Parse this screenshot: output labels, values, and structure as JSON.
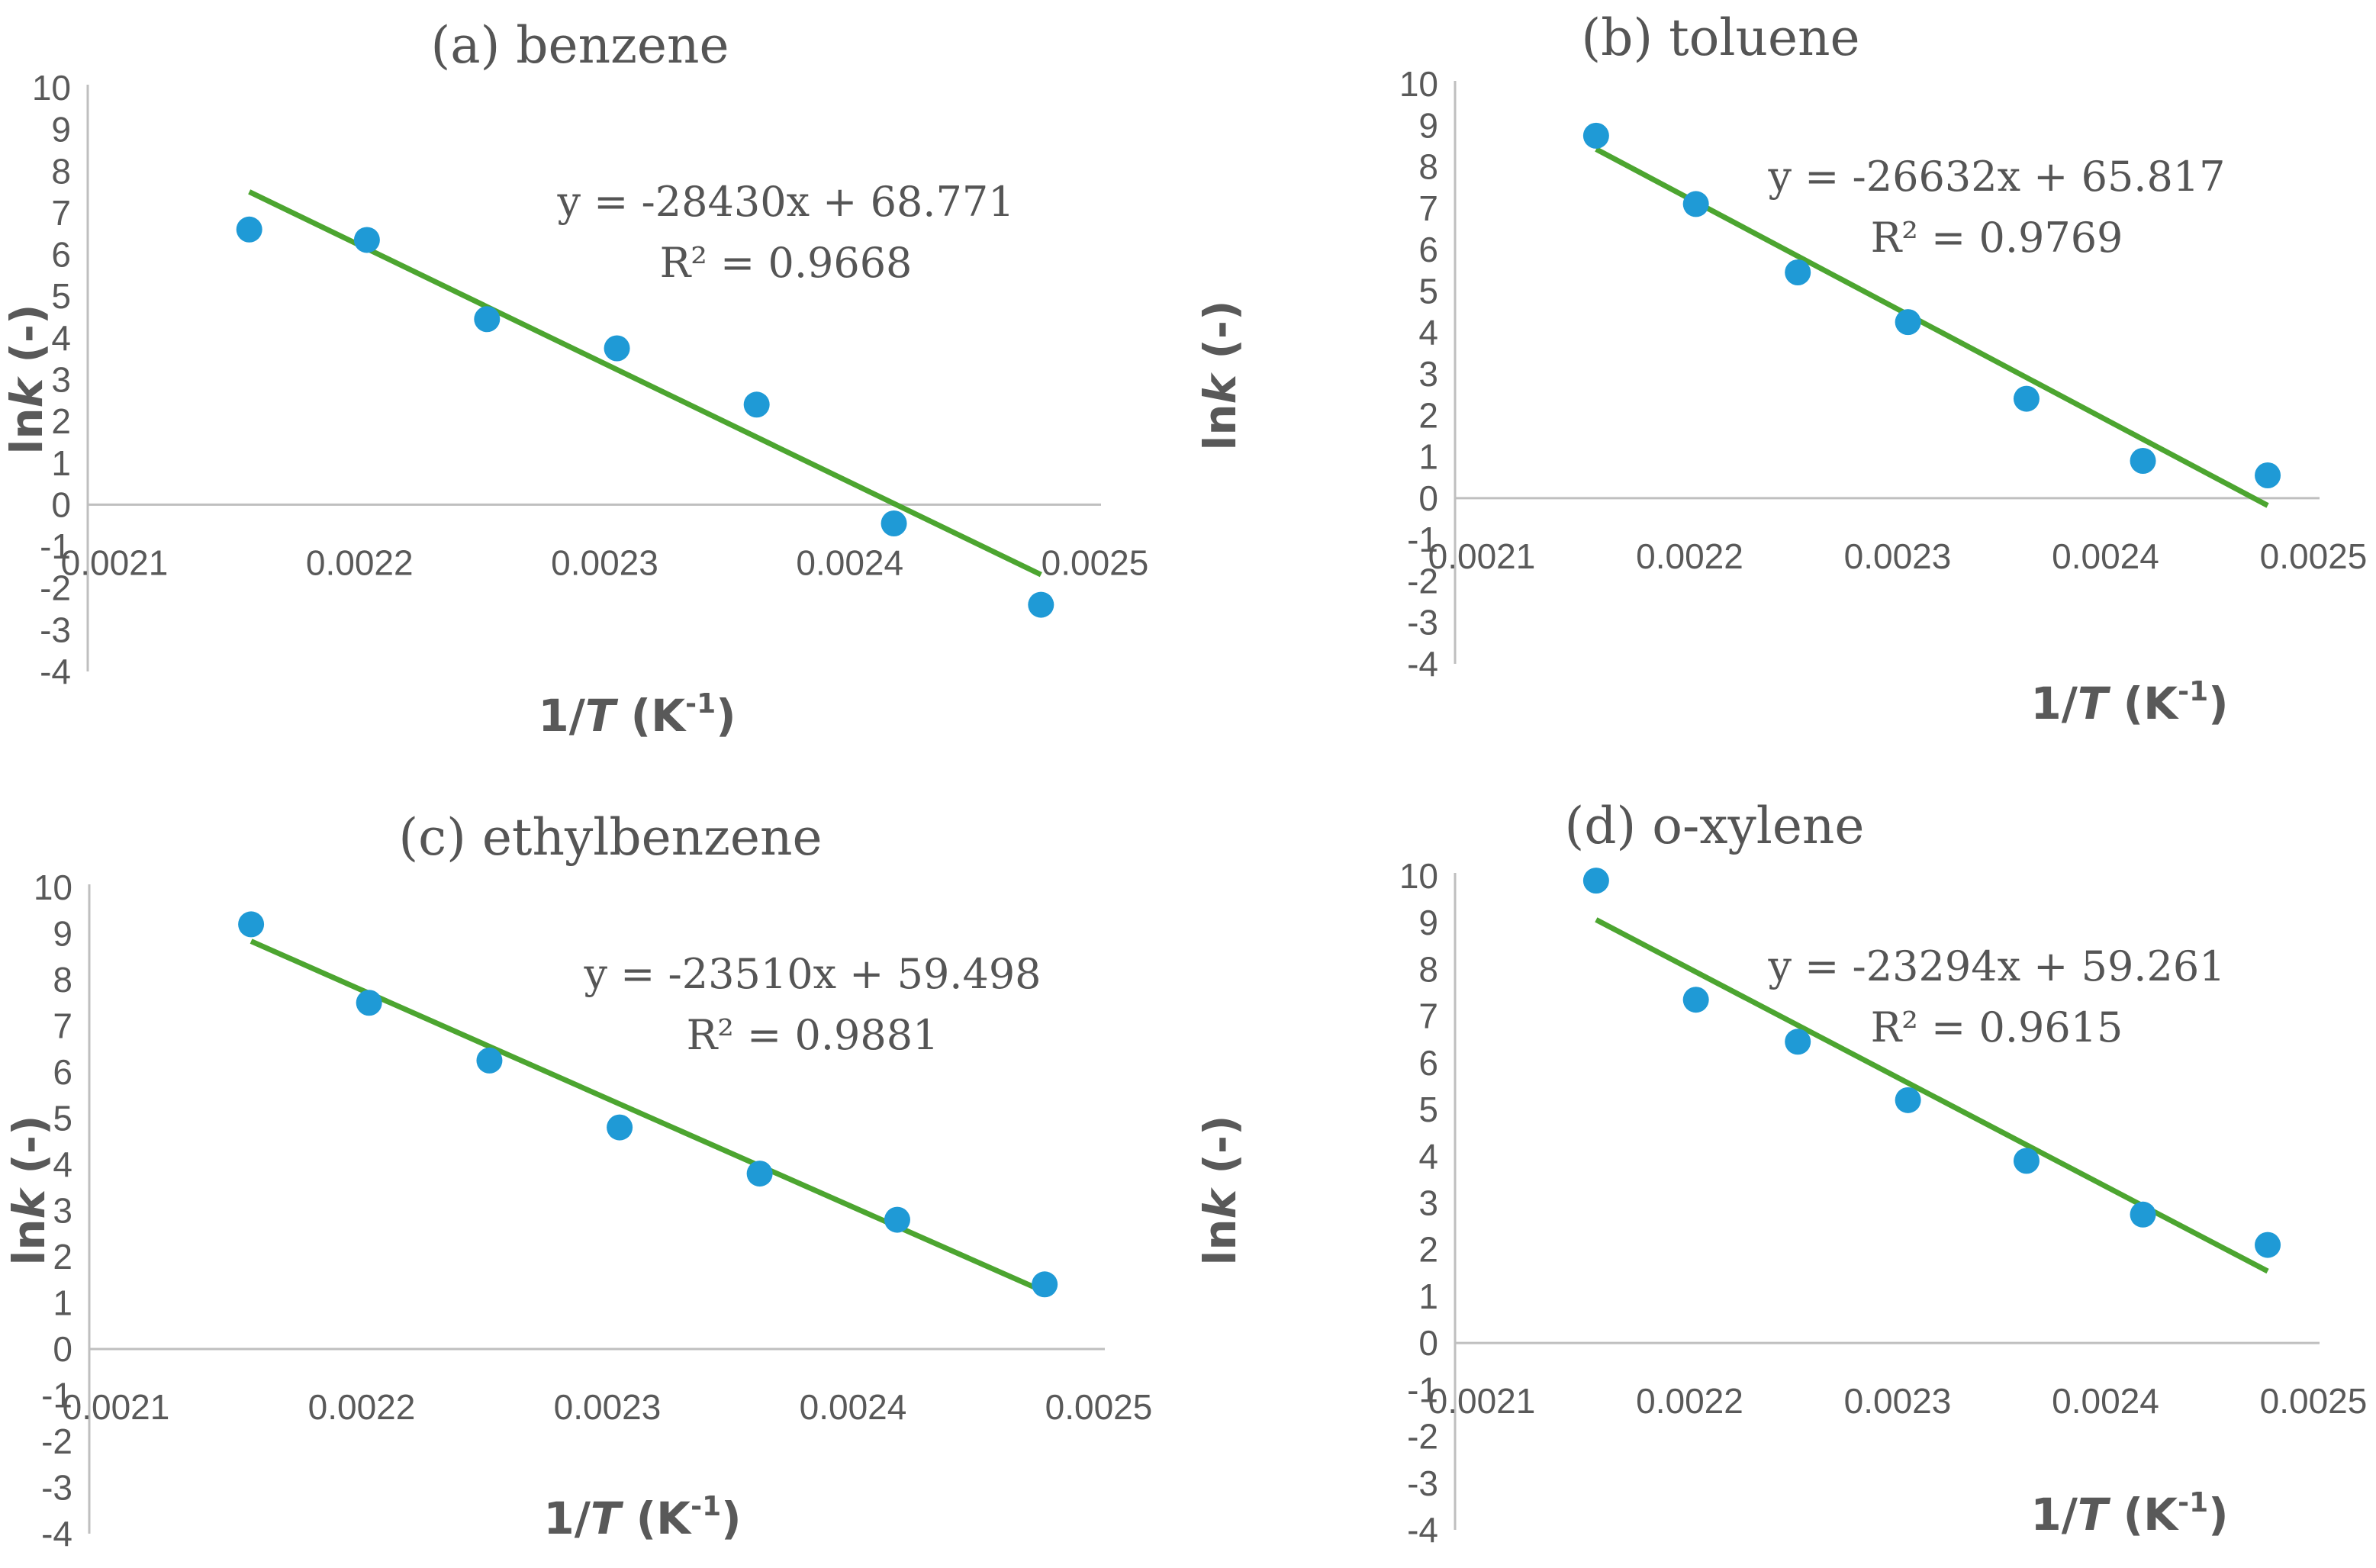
{
  "chart_data": [
    {
      "type": "scatter",
      "title": "(a) benzene",
      "xlabel_main": "1/",
      "xlabel_italic": "T",
      "xlabel_unit": " (K",
      "xlabel_sup": "-1",
      "xlabel_close": ")",
      "ylabel_main": "ln",
      "ylabel_italic": "k",
      "ylabel_unit": " (-)",
      "xlim": [
        0.0021,
        0.0025
      ],
      "ylim": [
        -4,
        10
      ],
      "x_ticks": [
        "0.0021",
        "0.0022",
        "0.0023",
        "0.0024",
        "0.0025"
      ],
      "x_tick_values": [
        0.0021,
        0.0022,
        0.0023,
        0.0024,
        0.0025
      ],
      "y_ticks": [
        -4,
        -3,
        -2,
        -1,
        0,
        1,
        2,
        3,
        4,
        5,
        6,
        7,
        8,
        9,
        10
      ],
      "x": [
        0.002155,
        0.002203,
        0.002252,
        0.002305,
        0.002362,
        0.002418,
        0.002478
      ],
      "y": [
        6.6,
        6.35,
        4.45,
        3.75,
        2.4,
        -0.45,
        -2.4
      ],
      "trendline": {
        "slope": -28430,
        "intercept": 68.771
      },
      "equation": "y = -28430x + 68.771",
      "r_squared": "R² = 0.9668",
      "point_color": "#1f9ad6",
      "line_color": "#4ca530"
    },
    {
      "type": "scatter",
      "title": "(b) toluene",
      "xlabel_main": "1/",
      "xlabel_italic": "T",
      "xlabel_unit": " (K",
      "xlabel_sup": "-1",
      "xlabel_close": ")",
      "ylabel_main": "ln",
      "ylabel_italic": "k",
      "ylabel_unit": " (-)",
      "xlim": [
        0.0021,
        0.0025
      ],
      "ylim": [
        -4,
        10
      ],
      "x_ticks": [
        "0.0021",
        "0.0022",
        "0.0023",
        "0.0024",
        "0.0025"
      ],
      "x_tick_values": [
        0.0021,
        0.0022,
        0.0023,
        0.0024,
        0.0025
      ],
      "y_ticks": [
        -4,
        -3,
        -2,
        -1,
        0,
        1,
        2,
        3,
        4,
        5,
        6,
        7,
        8,
        9,
        10
      ],
      "x": [
        0.002155,
        0.002203,
        0.002252,
        0.002305,
        0.002362,
        0.002418,
        0.002478
      ],
      "y": [
        8.75,
        7.1,
        5.45,
        4.25,
        2.4,
        0.9,
        0.55
      ],
      "trendline": {
        "slope": -26632,
        "intercept": 65.817
      },
      "equation": "y = -26632x + 65.817",
      "r_squared": "R² = 0.9769",
      "point_color": "#1f9ad6",
      "line_color": "#4ca530"
    },
    {
      "type": "scatter",
      "title": "(c) ethylbenzene",
      "xlabel_main": "1/",
      "xlabel_italic": "T",
      "xlabel_unit": " (K",
      "xlabel_sup": "-1",
      "xlabel_close": ")",
      "ylabel_main": "ln",
      "ylabel_italic": "k",
      "ylabel_unit": " (-)",
      "xlim": [
        0.0021,
        0.0025
      ],
      "ylim": [
        -4,
        10
      ],
      "x_ticks": [
        "0.0021",
        "0.0022",
        "0.0023",
        "0.0024",
        "0.0025"
      ],
      "x_tick_values": [
        0.0021,
        0.0022,
        0.0023,
        0.0024,
        0.0025
      ],
      "y_ticks": [
        -4,
        -3,
        -2,
        -1,
        0,
        1,
        2,
        3,
        4,
        5,
        6,
        7,
        8,
        9,
        10
      ],
      "x": [
        0.002155,
        0.002203,
        0.002252,
        0.002305,
        0.002362,
        0.002418,
        0.002478
      ],
      "y": [
        9.2,
        7.5,
        6.25,
        4.8,
        3.8,
        2.8,
        1.4
      ],
      "trendline": {
        "slope": -23510,
        "intercept": 59.498
      },
      "equation": "y = -23510x + 59.498",
      "r_squared": "R² = 0.9881",
      "point_color": "#1f9ad6",
      "line_color": "#4ca530"
    },
    {
      "type": "scatter",
      "title": "(d) o-xylene",
      "xlabel_main": "1/",
      "xlabel_italic": "T",
      "xlabel_unit": " (K",
      "xlabel_sup": "-1",
      "xlabel_close": ")",
      "ylabel_main": "ln",
      "ylabel_italic": "k",
      "ylabel_unit": " (-)",
      "xlim": [
        0.0021,
        0.0025
      ],
      "ylim": [
        -4,
        10
      ],
      "x_ticks": [
        "0.0021",
        "0.0022",
        "0.0023",
        "0.0024",
        "0.0025"
      ],
      "x_tick_values": [
        0.0021,
        0.0022,
        0.0023,
        0.0024,
        0.0025
      ],
      "y_ticks": [
        -4,
        -3,
        -2,
        -1,
        0,
        1,
        2,
        3,
        4,
        5,
        6,
        7,
        8,
        9,
        10
      ],
      "x": [
        0.002155,
        0.002203,
        0.002252,
        0.002305,
        0.002362,
        0.002418,
        0.002478
      ],
      "y": [
        9.9,
        7.35,
        6.45,
        5.2,
        3.9,
        2.75,
        2.1
      ],
      "trendline": {
        "slope": -23294,
        "intercept": 59.261
      },
      "equation": "y = -23294x + 59.261",
      "r_squared": "R² = 0.9615",
      "point_color": "#1f9ad6",
      "line_color": "#4ca530"
    }
  ]
}
